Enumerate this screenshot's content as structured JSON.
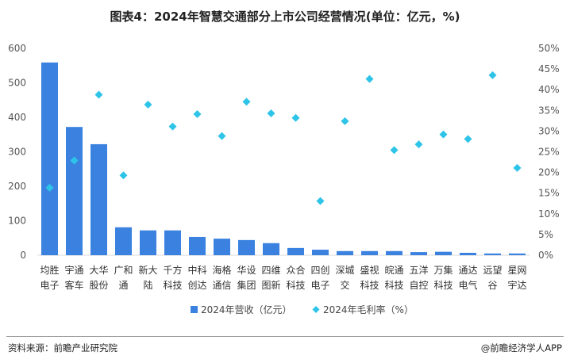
{
  "title": "图表4：2024年智慧交通部分上市公司经营情况(单位：亿元，%)",
  "source": "资料来源：前瞻产业研究院",
  "brand": "@前瞻经济学人APP",
  "colors": {
    "bar": "#3b82e0",
    "marker": "#2ec4e8",
    "axis": "#555555"
  },
  "chart_data": {
    "type": "bar",
    "categories": [
      [
        "均胜",
        "电子"
      ],
      [
        "宇通",
        "客车"
      ],
      [
        "大华",
        "股份"
      ],
      [
        "广和",
        "通"
      ],
      [
        "新大",
        "陆"
      ],
      [
        "千方",
        "科技"
      ],
      [
        "中科",
        "创达"
      ],
      [
        "海格",
        "通信"
      ],
      [
        "华设",
        "集团"
      ],
      [
        "四维",
        "图新"
      ],
      [
        "众合",
        "科技"
      ],
      [
        "四创",
        "电子"
      ],
      [
        "深城",
        "交"
      ],
      [
        "盛视",
        "科技"
      ],
      [
        "皖通",
        "科技"
      ],
      [
        "五洋",
        "自控"
      ],
      [
        "万集",
        "科技"
      ],
      [
        "通达",
        "电气"
      ],
      [
        "远望",
        "谷"
      ],
      [
        "星网",
        "宇达"
      ]
    ],
    "series": [
      {
        "name": "2024年营收（亿元）",
        "type": "bar",
        "axis": "left",
        "values": [
          559,
          372,
          322,
          81,
          72,
          72,
          53,
          48,
          44,
          35,
          21,
          16,
          12,
          12,
          12,
          9,
          10,
          7,
          5,
          5
        ]
      },
      {
        "name": "2024年毛利率（%）",
        "type": "scatter",
        "axis": "right",
        "values": [
          16.3,
          22.9,
          38.8,
          19.3,
          36.4,
          31.1,
          34.1,
          28.8,
          37.1,
          34.3,
          33.2,
          13.1,
          32.4,
          42.6,
          25.4,
          26.8,
          29.2,
          28.1,
          43.5,
          21.1
        ]
      }
    ],
    "y_left": {
      "min": 0,
      "max": 600,
      "ticks": [
        0,
        100,
        200,
        300,
        400,
        500,
        600
      ]
    },
    "y_right": {
      "min": 0,
      "max": 50,
      "ticks": [
        "0%",
        "5%",
        "10%",
        "15%",
        "20%",
        "25%",
        "30%",
        "35%",
        "40%",
        "45%",
        "50%"
      ]
    },
    "legend": {
      "position": "bottom"
    }
  }
}
